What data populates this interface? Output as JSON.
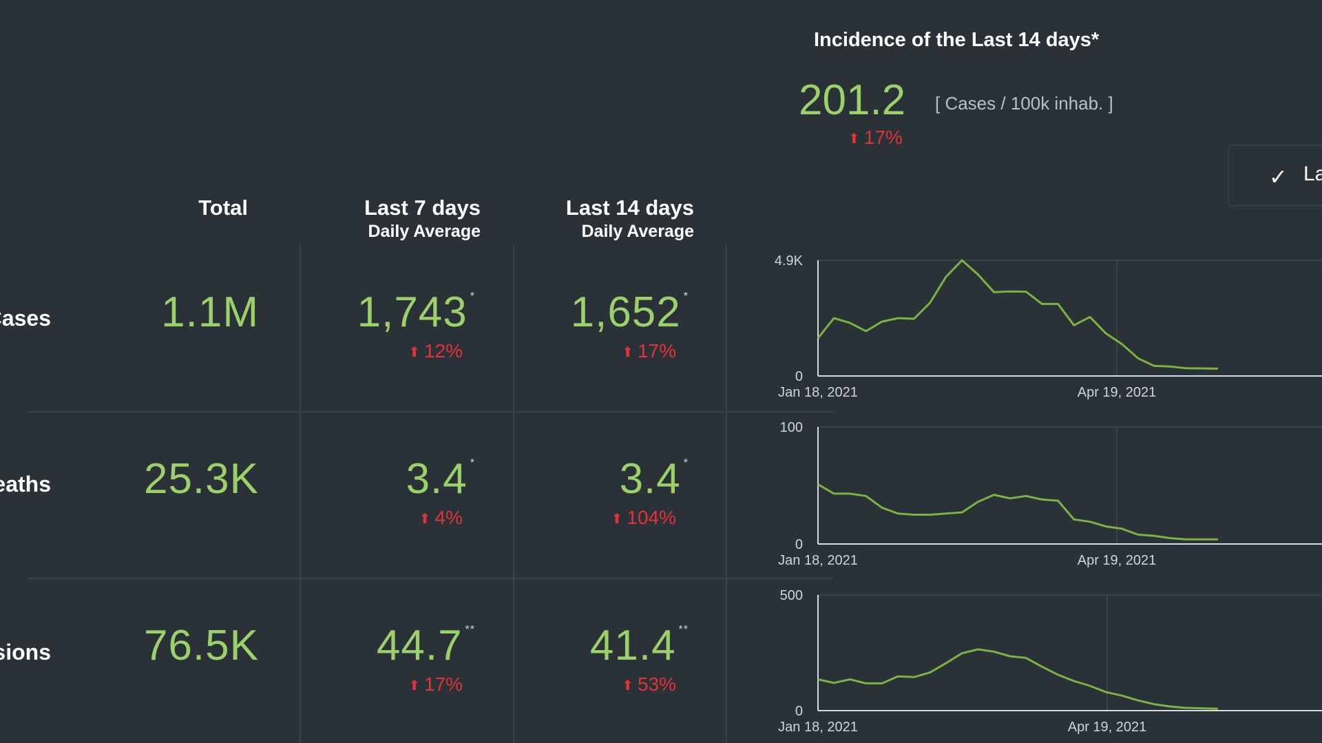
{
  "incidence": {
    "title": "Incidence of the Last 14 days*",
    "value": "201.2",
    "unit": "[ Cases / 100k inhab. ]",
    "change": "17%"
  },
  "toggle": {
    "label": "La"
  },
  "columns": {
    "total": "Total",
    "last7": "Last 7 days",
    "last7_sub": "Daily Average",
    "last14": "Last 14 days",
    "last14_sub": "Daily Average"
  },
  "rows": [
    {
      "label": "Cases",
      "total": "1.1M",
      "avg7": "1,743",
      "avg7_mark": "*",
      "avg7_change": "12%",
      "avg14": "1,652",
      "avg14_mark": "*",
      "avg14_change": "17%"
    },
    {
      "label": "eaths",
      "total": "25.3K",
      "avg7": "3.4",
      "avg7_mark": "*",
      "avg7_change": "4%",
      "avg14": "3.4",
      "avg14_mark": "*",
      "avg14_change": "104%"
    },
    {
      "label": "sions",
      "total": "76.5K",
      "avg7": "44.7",
      "avg7_mark": "**",
      "avg7_change": "17%",
      "avg14": "41.4",
      "avg14_mark": "**",
      "avg14_change": "53%"
    }
  ],
  "colors": {
    "line": "#7cb342",
    "positive": "#9bd06a",
    "negative": "#e0333b",
    "background": "#2a3137"
  },
  "chart_data": [
    {
      "type": "line",
      "series_color": "#7cb342",
      "ylim": [
        0,
        4900
      ],
      "y_ticks": [
        "4.9K",
        "0"
      ],
      "x_ticks": [
        "Jan 18, 2021",
        "Apr 19, 2021"
      ],
      "x": [
        0,
        1,
        2,
        3,
        4,
        5,
        6,
        7,
        8,
        9,
        10,
        11,
        12,
        13,
        14,
        15,
        16,
        17,
        18,
        19,
        20,
        21,
        22,
        23,
        24,
        25
      ],
      "values": [
        1600,
        2450,
        2250,
        1900,
        2300,
        2450,
        2420,
        3100,
        4200,
        4900,
        4300,
        3550,
        3580,
        3570,
        3050,
        3050,
        2150,
        2500,
        1800,
        1350,
        750,
        430,
        400,
        330,
        320,
        310
      ]
    },
    {
      "type": "line",
      "series_color": "#7cb342",
      "ylim": [
        0,
        100
      ],
      "y_ticks": [
        "100",
        "0"
      ],
      "x_ticks": [
        "Jan 18, 2021",
        "Apr 19, 2021"
      ],
      "x": [
        0,
        1,
        2,
        3,
        4,
        5,
        6,
        7,
        8,
        9,
        10,
        11,
        12,
        13,
        14,
        15,
        16,
        17,
        18,
        19,
        20,
        21,
        22,
        23,
        24,
        25
      ],
      "values": [
        51,
        43,
        43,
        41,
        31,
        26,
        25,
        25,
        26,
        27,
        36,
        42,
        39,
        41,
        38,
        37,
        21,
        19,
        15,
        13,
        8,
        7,
        5,
        4,
        4,
        4
      ]
    },
    {
      "type": "line",
      "series_color": "#7cb342",
      "ylim": [
        0,
        500
      ],
      "y_ticks": [
        "500",
        "0"
      ],
      "x_ticks": [
        "Jan 18, 2021",
        "Apr 19, 2021"
      ],
      "x": [
        0,
        1,
        2,
        3,
        4,
        5,
        6,
        7,
        8,
        9,
        10,
        11,
        12,
        13,
        14,
        15,
        16,
        17,
        18,
        19,
        20,
        21,
        22,
        23,
        24,
        25
      ],
      "values": [
        135,
        120,
        135,
        118,
        118,
        148,
        145,
        165,
        205,
        248,
        265,
        255,
        235,
        228,
        190,
        155,
        128,
        107,
        80,
        65,
        44,
        28,
        18,
        12,
        10,
        8
      ]
    }
  ]
}
